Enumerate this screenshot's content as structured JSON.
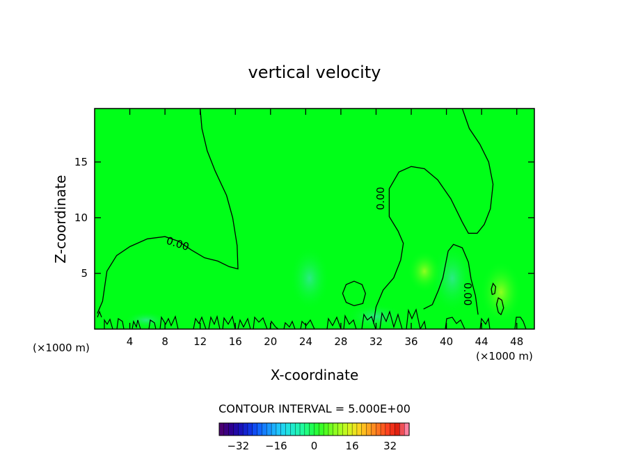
{
  "chart_data": {
    "type": "contour",
    "title": "vertical velocity",
    "xlabel": "X-coordinate",
    "ylabel": "Z-coordinate",
    "x_unit_left": "(×1000 m)",
    "x_unit_right": "(×1000 m)",
    "xlim": [
      0,
      50
    ],
    "ylim": [
      0,
      19.8
    ],
    "xticks": [
      4,
      8,
      12,
      16,
      20,
      24,
      28,
      32,
      36,
      40,
      44,
      48
    ],
    "yticks": [
      5,
      10,
      15
    ],
    "contour_label": "0.00",
    "contour_interval_text": "CONTOUR INTERVAL = 5.000E+00",
    "colorbar": {
      "range": [
        -40,
        40
      ],
      "ticks": [
        -32,
        -16,
        0,
        16,
        32
      ],
      "colors": [
        "#4a0072",
        "#2e0090",
        "#1a10b8",
        "#1030e0",
        "#1060ff",
        "#1890ff",
        "#20c0ff",
        "#20e0e8",
        "#20f0c0",
        "#20ff90",
        "#20ff40",
        "#40ff20",
        "#80ff20",
        "#b0ff20",
        "#e0f020",
        "#ffd020",
        "#ffa020",
        "#ff7020",
        "#ff4020",
        "#e02010",
        "#ff80a0"
      ]
    },
    "contours": [
      {
        "level": 0.0,
        "points": [
          [
            0.3,
            1.4
          ],
          [
            0.9,
            2.5
          ],
          [
            1.4,
            5.2
          ],
          [
            2.5,
            6.6
          ],
          [
            4,
            7.4
          ],
          [
            6,
            8.1
          ],
          [
            8,
            8.3
          ],
          [
            9.5,
            7.9
          ],
          [
            11,
            7.1
          ],
          [
            12.5,
            6.4
          ],
          [
            14,
            6.1
          ],
          [
            15.3,
            5.6
          ],
          [
            16.3,
            5.4
          ],
          [
            16.2,
            7.5
          ],
          [
            15.7,
            10
          ],
          [
            15,
            12
          ],
          [
            13.7,
            14.2
          ],
          [
            12.8,
            16
          ],
          [
            12.2,
            18
          ],
          [
            12,
            19.8
          ]
        ]
      },
      {
        "level": 0.0,
        "points": [
          [
            31.7,
            0.5
          ],
          [
            32,
            2
          ],
          [
            32.8,
            3.5
          ],
          [
            34,
            4.6
          ],
          [
            34.8,
            6.2
          ],
          [
            35.1,
            7.7
          ],
          [
            34.5,
            8.8
          ],
          [
            33.5,
            10.1
          ],
          [
            33.5,
            12.6
          ],
          [
            34.6,
            14.1
          ],
          [
            36,
            14.6
          ],
          [
            37.5,
            14.4
          ],
          [
            39,
            13.4
          ],
          [
            40.5,
            11.7
          ],
          [
            41.8,
            9.6
          ],
          [
            42.5,
            8.6
          ],
          [
            43.5,
            8.6
          ],
          [
            44.3,
            9.4
          ],
          [
            45,
            10.8
          ],
          [
            45.3,
            13
          ],
          [
            44.8,
            15
          ],
          [
            43.8,
            16.6
          ],
          [
            42.6,
            18
          ],
          [
            41.8,
            19.8
          ]
        ]
      },
      {
        "level": 0.0,
        "points": [
          [
            29.5,
            2.1
          ],
          [
            28.6,
            2.4
          ],
          [
            28.2,
            3.2
          ],
          [
            28.6,
            4.0
          ],
          [
            29.5,
            4.3
          ],
          [
            30.4,
            4.0
          ],
          [
            30.8,
            3.2
          ],
          [
            30.5,
            2.3
          ],
          [
            29.5,
            2.1
          ]
        ]
      },
      {
        "level": 0.0,
        "points": [
          [
            37.4,
            1.8
          ],
          [
            38.4,
            2.2
          ],
          [
            39.1,
            3.5
          ],
          [
            39.6,
            4.6
          ],
          [
            40.2,
            7.0
          ],
          [
            40.8,
            7.6
          ],
          [
            41.8,
            7.3
          ],
          [
            42.5,
            6.0
          ],
          [
            42.8,
            4.5
          ],
          [
            43.3,
            3.0
          ],
          [
            43.6,
            1.3
          ]
        ]
      },
      {
        "level": 0.0,
        "points": [
          [
            45.9,
            1.5
          ],
          [
            45.7,
            2.2
          ],
          [
            45.9,
            2.8
          ],
          [
            46.3,
            2.6
          ],
          [
            46.5,
            1.9
          ],
          [
            46.2,
            1.3
          ],
          [
            45.9,
            1.5
          ]
        ]
      },
      {
        "level": 0.0,
        "points": [
          [
            45.2,
            3.1
          ],
          [
            45.1,
            3.6
          ],
          [
            45.3,
            4.1
          ],
          [
            45.6,
            3.8
          ],
          [
            45.5,
            3.2
          ],
          [
            45.2,
            3.1
          ]
        ]
      }
    ]
  }
}
